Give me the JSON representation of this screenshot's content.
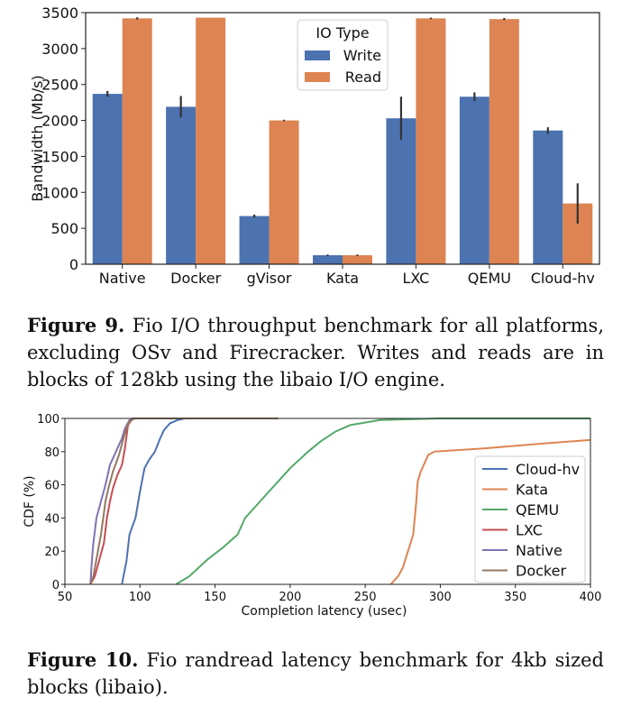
{
  "charts": {
    "chart_data": [
      {
        "type": "bar",
        "categories": [
          "Native",
          "Docker",
          "gVisor",
          "Kata",
          "LXC",
          "QEMU",
          "Cloud-hv"
        ],
        "series": [
          {
            "name": "Write",
            "values": [
              2370,
              2190,
              670,
              125,
              2030,
              2330,
              1860
            ],
            "err": [
              40,
              150,
              20,
              10,
              300,
              60,
              45
            ],
            "color": "#4c72b0"
          },
          {
            "name": "Read",
            "values": [
              3420,
              3430,
              2000,
              125,
              3420,
              3410,
              845
            ],
            "err": [
              15,
              0,
              10,
              10,
              10,
              15,
              280
            ],
            "color": "#dd8452"
          }
        ],
        "ylabel": "Bandwidth (Mb/s)",
        "ylim": [
          0,
          3500
        ],
        "yticks": [
          0,
          500,
          1000,
          1500,
          2000,
          2500,
          3000,
          3500
        ],
        "legend_title": "IO Type",
        "legend_position": "top-center",
        "grid": false
      },
      {
        "type": "line",
        "xlabel": "Completion latency (usec)",
        "ylabel": "CDF (%)",
        "xlim": [
          50,
          400
        ],
        "ylim": [
          0,
          100
        ],
        "xticks": [
          50,
          100,
          150,
          200,
          250,
          300,
          350,
          400
        ],
        "yticks": [
          0,
          20,
          40,
          60,
          80,
          100
        ],
        "legend_position": "center-right",
        "grid": false,
        "series": [
          {
            "name": "Cloud-hv",
            "color": "#4c72b0",
            "points": [
              [
                88,
                0
              ],
              [
                89,
                5
              ],
              [
                91,
                14
              ],
              [
                93,
                30
              ],
              [
                97,
                40
              ],
              [
                100,
                56
              ],
              [
                103,
                70
              ],
              [
                106,
                75
              ],
              [
                110,
                80
              ],
              [
                113,
                87
              ],
              [
                116,
                93
              ],
              [
                120,
                97
              ],
              [
                125,
                99
              ],
              [
                130,
                100
              ],
              [
                190,
                100
              ]
            ]
          },
          {
            "name": "Kata",
            "color": "#dd8452",
            "points": [
              [
                267,
                0
              ],
              [
                272,
                5
              ],
              [
                275,
                10
              ],
              [
                282,
                30
              ],
              [
                284,
                50
              ],
              [
                285,
                62
              ],
              [
                287,
                68
              ],
              [
                292,
                78
              ],
              [
                296,
                80
              ],
              [
                330,
                82
              ],
              [
                370,
                85
              ],
              [
                400,
                87
              ]
            ]
          },
          {
            "name": "QEMU",
            "color": "#55a868",
            "points": [
              [
                124,
                0
              ],
              [
                133,
                5
              ],
              [
                145,
                15
              ],
              [
                155,
                22
              ],
              [
                165,
                30
              ],
              [
                170,
                40
              ],
              [
                180,
                50
              ],
              [
                190,
                60
              ],
              [
                200,
                70
              ],
              [
                212,
                80
              ],
              [
                220,
                86
              ],
              [
                230,
                92
              ],
              [
                240,
                96
              ],
              [
                260,
                99
              ],
              [
                300,
                100
              ],
              [
                400,
                100
              ]
            ]
          },
          {
            "name": "LXC",
            "color": "#c44e52",
            "points": [
              [
                67,
                0
              ],
              [
                70,
                5
              ],
              [
                73,
                15
              ],
              [
                76,
                25
              ],
              [
                78,
                40
              ],
              [
                80,
                50
              ],
              [
                82,
                58
              ],
              [
                85,
                66
              ],
              [
                88,
                72
              ],
              [
                90,
                82
              ],
              [
                92,
                96
              ],
              [
                95,
                100
              ],
              [
                190,
                100
              ]
            ]
          },
          {
            "name": "Native",
            "color": "#8172b3",
            "points": [
              [
                67,
                0
              ],
              [
                68,
                15
              ],
              [
                69,
                25
              ],
              [
                71,
                40
              ],
              [
                74,
                50
              ],
              [
                77,
                60
              ],
              [
                80,
                72
              ],
              [
                84,
                80
              ],
              [
                88,
                88
              ],
              [
                90,
                94
              ],
              [
                93,
                99
              ],
              [
                97,
                100
              ],
              [
                190,
                100
              ]
            ]
          },
          {
            "name": "Docker",
            "color": "#937860",
            "points": [
              [
                67,
                0
              ],
              [
                69,
                5
              ],
              [
                70,
                10
              ],
              [
                72,
                20
              ],
              [
                74,
                30
              ],
              [
                77,
                50
              ],
              [
                79,
                58
              ],
              [
                82,
                68
              ],
              [
                86,
                78
              ],
              [
                89,
                88
              ],
              [
                92,
                97
              ],
              [
                96,
                100
              ],
              [
                192,
                100
              ]
            ]
          }
        ]
      }
    ]
  },
  "captions": {
    "fig9_label": "Figure 9.",
    "fig9_text": " Fio I/O throughput benchmark for all platforms, excluding OSv and Firecracker. Writes and reads are in blocks of 128kb using the libaio I/O engine.",
    "fig10_label": "Figure 10.",
    "fig10_text": " Fio randread latency benchmark for 4kb sized blocks (libaio)."
  }
}
